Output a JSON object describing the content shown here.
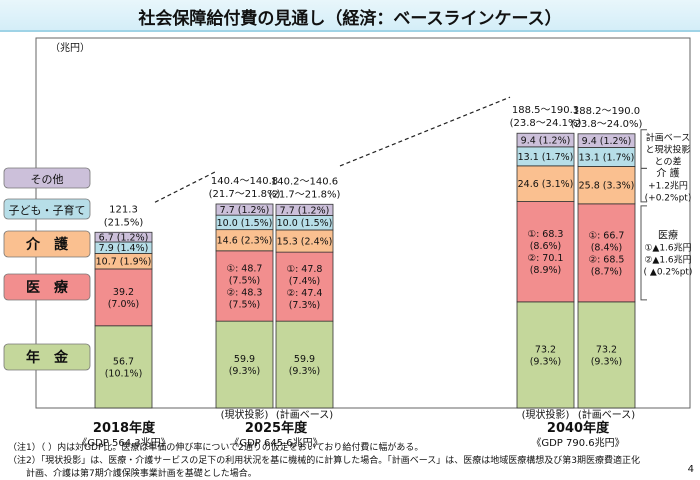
{
  "title": "社会保障給付費の見通し（経済：ベースラインケース）",
  "page_number": "4",
  "notes": [
    "（注1）（ ）内は対GDP比。医療は単価の伸び率について2通りの仮定をおいており給付費に幅がある。",
    "（注2）「現状投影」は、医療・介護サービスの足下の利用状況を基に機械的に計算した場合。「計画ベース」は、医療は地域医療構想及び第3期医療費適正化",
    "　　計画、介護は第7期介護保険事業計画を基礎とした場合。"
  ],
  "colors": {
    "pension": "#c4d79b",
    "medical": "#f28e8e",
    "care": "#fac090",
    "child": "#b7dee8",
    "other": "#ccc0da"
  },
  "chart_data": {
    "type": "bar",
    "stacked": true,
    "unit": "（兆円）",
    "categories_left": [
      {
        "key": "other",
        "label": "その他"
      },
      {
        "key": "child",
        "label": "子ども・子育て"
      },
      {
        "key": "care",
        "label": "介　護"
      },
      {
        "key": "medical",
        "label": "医　療"
      },
      {
        "key": "pension",
        "label": "年　金"
      }
    ],
    "groups": [
      {
        "year": "2018年度",
        "gdp": "《GDP 564.3兆円》",
        "bars": [
          {
            "sublabel": "",
            "total_label": "121.3",
            "total_ratio": "(21.5%)",
            "segments": [
              {
                "key": "pension",
                "value": 56.7,
                "label": [
                  "56.7",
                  "(10.1%)"
                ]
              },
              {
                "key": "medical",
                "value": 39.2,
                "label": [
                  "39.2",
                  "(7.0%)"
                ]
              },
              {
                "key": "care",
                "value": 10.7,
                "label": [
                  "10.7 (1.9%)"
                ]
              },
              {
                "key": "child",
                "value": 7.9,
                "label": [
                  "7.9 (1.4%)"
                ]
              },
              {
                "key": "other",
                "value": 6.7,
                "label": [
                  "6.7 (1.2%)"
                ]
              }
            ]
          }
        ]
      },
      {
        "year": "2025年度",
        "gdp": "《GDP 645.6兆円》",
        "bars": [
          {
            "sublabel": "(現状投影)",
            "total_label": "140.4～140.8",
            "total_ratio": "(21.7～21.8%)",
            "segments": [
              {
                "key": "pension",
                "value": 59.9,
                "label": [
                  "59.9",
                  "(9.3%)"
                ]
              },
              {
                "key": "medical",
                "value": 48.5,
                "label": [
                  "①: 48.7",
                  "(7.5%)",
                  "②: 48.3",
                  "(7.5%)"
                ]
              },
              {
                "key": "care",
                "value": 14.6,
                "label": [
                  "14.6 (2.3%)"
                ]
              },
              {
                "key": "child",
                "value": 10.0,
                "label": [
                  "10.0 (1.5%)"
                ]
              },
              {
                "key": "other",
                "value": 7.7,
                "label": [
                  "7.7 (1.2%)"
                ]
              }
            ]
          },
          {
            "sublabel": "(計画ベース)",
            "total_label": "140.2～140.6",
            "total_ratio": "(21.7～21.8%)",
            "segments": [
              {
                "key": "pension",
                "value": 59.9,
                "label": [
                  "59.9",
                  "(9.3%)"
                ]
              },
              {
                "key": "medical",
                "value": 47.6,
                "label": [
                  "①: 47.8",
                  "(7.4%)",
                  "②: 47.4",
                  "(7.3%)"
                ]
              },
              {
                "key": "care",
                "value": 15.3,
                "label": [
                  "15.3 (2.4%)"
                ]
              },
              {
                "key": "child",
                "value": 10.0,
                "label": [
                  "10.0 (1.5%)"
                ]
              },
              {
                "key": "other",
                "value": 7.7,
                "label": [
                  "7.7 (1.2%)"
                ]
              }
            ]
          }
        ]
      },
      {
        "year": "2040年度",
        "gdp": "《GDP 790.6兆円》",
        "bars": [
          {
            "sublabel": "(現状投影)",
            "total_label": "188.5～190.3",
            "total_ratio": "(23.8～24.1%)",
            "segments": [
              {
                "key": "pension",
                "value": 73.2,
                "label": [
                  "73.2",
                  "(9.3%)"
                ]
              },
              {
                "key": "medical",
                "value": 69.2,
                "label": [
                  "①: 68.3",
                  "(8.6%)",
                  "②: 70.1",
                  "(8.9%)"
                ]
              },
              {
                "key": "care",
                "value": 24.6,
                "label": [
                  "24.6 (3.1%)"
                ]
              },
              {
                "key": "child",
                "value": 13.1,
                "label": [
                  "13.1 (1.7%)"
                ]
              },
              {
                "key": "other",
                "value": 9.4,
                "label": [
                  "9.4 (1.2%)"
                ]
              }
            ]
          },
          {
            "sublabel": "(計画ベース)",
            "total_label": "188.2～190.0",
            "total_ratio": "(23.8～24.0%)",
            "segments": [
              {
                "key": "pension",
                "value": 73.2,
                "label": [
                  "73.2",
                  "(9.3%)"
                ]
              },
              {
                "key": "medical",
                "value": 67.6,
                "label": [
                  "①: 66.7",
                  "(8.4%)",
                  "②: 68.5",
                  "(8.7%)"
                ]
              },
              {
                "key": "care",
                "value": 25.8,
                "label": [
                  "25.8 (3.3%)"
                ]
              },
              {
                "key": "child",
                "value": 13.1,
                "label": [
                  "13.1 (1.7%)"
                ]
              },
              {
                "key": "other",
                "value": 9.4,
                "label": [
                  "9.4 (1.2%)"
                ]
              }
            ]
          }
        ]
      }
    ],
    "side_annotations": [
      {
        "key": "other",
        "lines": [
          "計画ベース",
          "と現状投影",
          "との差"
        ]
      },
      {
        "key": "care",
        "lines": [
          "介 護",
          "+1.2兆円",
          "(+0.2%pt)"
        ]
      },
      {
        "key": "medical",
        "lines": [
          "医療",
          "①▲1.6兆円",
          "②▲1.6兆円",
          "( ▲0.2%pt)"
        ]
      }
    ]
  }
}
